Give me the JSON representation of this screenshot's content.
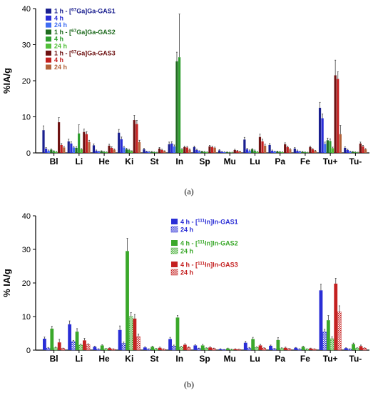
{
  "chart_data": [
    {
      "id": "a",
      "type": "bar",
      "caption": "(a)",
      "ylabel": "%IA/g",
      "ylim": [
        0,
        40
      ],
      "yticks": [
        0,
        10,
        20,
        30,
        40
      ],
      "categories": [
        "Bl",
        "Li",
        "He",
        "Ki",
        "St",
        "In",
        "Sp",
        "Mu",
        "Lu",
        "Pa",
        "Fe",
        "Tu+",
        "Tu-"
      ],
      "series": [
        {
          "name": "1 h - [67Ga]Ga-GAS1",
          "legend_prefix": "1 h - [",
          "legend_sup": "67",
          "legend_suffix": "Ga]Ga-GAS1",
          "color": "#1a1f8f",
          "values": [
            6.3,
            3.2,
            2.1,
            5.6,
            1.0,
            2.4,
            1.6,
            0.7,
            3.7,
            2.2,
            1.2,
            12.5,
            1.4
          ],
          "errors": [
            1.2,
            0.6,
            0.4,
            0.9,
            0.3,
            0.6,
            0.3,
            0.2,
            0.6,
            0.4,
            0.3,
            1.5,
            0.3
          ]
        },
        {
          "name": "4 h",
          "color": "#2a2ed6",
          "values": [
            1.2,
            2.6,
            0.6,
            3.8,
            0.4,
            2.6,
            0.8,
            0.3,
            1.0,
            0.6,
            0.6,
            9.6,
            0.8
          ],
          "errors": [
            0.3,
            0.5,
            0.2,
            0.6,
            0.1,
            0.5,
            0.2,
            0.1,
            0.3,
            0.2,
            0.2,
            1.2,
            0.2
          ]
        },
        {
          "name": "24 h",
          "color": "#3f6cf2",
          "values": [
            0.6,
            1.5,
            0.4,
            1.5,
            0.3,
            1.8,
            0.5,
            0.2,
            0.6,
            0.4,
            0.4,
            2.5,
            0.4
          ],
          "errors": [
            0.2,
            0.3,
            0.1,
            0.3,
            0.1,
            0.4,
            0.1,
            0.1,
            0.2,
            0.1,
            0.1,
            0.5,
            0.1
          ]
        },
        {
          "name": "1 h - [67Ga]Ga-GAS2",
          "legend_prefix": "1 h - [",
          "legend_sup": "67",
          "legend_suffix": "Ga]Ga-GAS2",
          "color": "#1f6b1f",
          "values": [
            0.9,
            1.4,
            0.5,
            1.0,
            0.3,
            25.4,
            0.4,
            0.2,
            1.0,
            0.4,
            0.3,
            3.5,
            0.3
          ],
          "errors": [
            0.2,
            0.3,
            0.1,
            0.3,
            0.1,
            2.5,
            0.1,
            0.1,
            0.2,
            0.1,
            0.1,
            0.6,
            0.1
          ]
        },
        {
          "name": "4 h",
          "color": "#2e9e2e",
          "values": [
            0.5,
            5.4,
            0.3,
            0.8,
            0.2,
            26.5,
            0.3,
            0.1,
            0.6,
            0.3,
            0.2,
            3.3,
            0.2
          ],
          "errors": [
            0.1,
            2.4,
            0.1,
            0.2,
            0.1,
            12.0,
            0.1,
            0.1,
            0.2,
            0.1,
            0.1,
            0.6,
            0.1
          ]
        },
        {
          "name": "24 h",
          "color": "#52c03a",
          "values": [
            0.3,
            1.0,
            0.2,
            0.5,
            0.1,
            1.0,
            0.2,
            0.1,
            0.3,
            0.2,
            0.1,
            1.3,
            0.1
          ],
          "errors": [
            0.1,
            0.2,
            0.1,
            0.1,
            0.1,
            0.2,
            0.1,
            0.1,
            0.1,
            0.1,
            0.1,
            0.3,
            0.1
          ]
        },
        {
          "name": "1 h - [67Ga]Ga-GAS3",
          "legend_prefix": "1 h - [",
          "legend_sup": "67",
          "legend_suffix": "Ga]Ga-GAS3",
          "color": "#6e1212",
          "values": [
            8.5,
            5.8,
            2.0,
            9.1,
            1.2,
            1.6,
            1.8,
            0.8,
            4.4,
            2.4,
            1.6,
            21.5,
            2.6
          ],
          "errors": [
            1.3,
            0.8,
            0.4,
            1.3,
            0.3,
            0.3,
            0.3,
            0.2,
            0.8,
            0.4,
            0.3,
            4.2,
            0.4
          ]
        },
        {
          "name": "4 h",
          "color": "#c42020",
          "values": [
            2.2,
            5.2,
            1.4,
            8.0,
            0.8,
            1.5,
            1.6,
            0.6,
            3.2,
            1.6,
            1.0,
            20.5,
            1.8
          ],
          "errors": [
            0.4,
            0.7,
            0.3,
            1.0,
            0.2,
            0.3,
            0.3,
            0.1,
            0.6,
            0.3,
            0.2,
            2.0,
            0.3
          ]
        },
        {
          "name": "24 h",
          "color": "#b3623a",
          "values": [
            1.5,
            3.0,
            0.9,
            3.0,
            0.5,
            0.9,
            1.4,
            0.4,
            2.0,
            1.0,
            0.6,
            5.2,
            1.0
          ],
          "errors": [
            0.3,
            0.5,
            0.2,
            0.5,
            0.1,
            0.2,
            0.2,
            0.1,
            0.4,
            0.2,
            0.1,
            2.4,
            0.2
          ]
        }
      ]
    },
    {
      "id": "b",
      "type": "bar",
      "caption": "(b)",
      "ylabel": "% IA/g",
      "ylim": [
        0,
        40
      ],
      "yticks": [
        0,
        10,
        20,
        30,
        40
      ],
      "categories": [
        "Bl",
        "Li",
        "He",
        "Ki",
        "St",
        "In",
        "Sp",
        "Mu",
        "Lu",
        "Pa",
        "Fe",
        "Tu+",
        "Tu-"
      ],
      "series": [
        {
          "name": "4 h - [111In]In-GAS1",
          "legend_prefix": "4 h - [",
          "legend_sup": "111",
          "legend_suffix": "In]In-GAS1",
          "color": "#2a2ed6",
          "pattern": false,
          "values": [
            3.4,
            7.7,
            1.0,
            6.0,
            0.8,
            3.3,
            1.4,
            0.3,
            2.2,
            1.3,
            0.7,
            17.8,
            0.6
          ],
          "errors": [
            0.5,
            1.0,
            0.2,
            1.2,
            0.2,
            0.5,
            0.2,
            0.1,
            0.4,
            0.2,
            0.1,
            1.8,
            0.1
          ]
        },
        {
          "name": "24 h",
          "color": "#2a2ed6",
          "pattern": true,
          "values": [
            0.6,
            2.5,
            0.3,
            2.0,
            0.3,
            1.2,
            0.5,
            0.1,
            0.6,
            0.4,
            0.3,
            5.4,
            0.3
          ],
          "errors": [
            0.2,
            0.4,
            0.1,
            0.4,
            0.1,
            0.3,
            0.1,
            0.1,
            0.2,
            0.1,
            0.1,
            0.8,
            0.1
          ]
        },
        {
          "name": "4 h - [111In]In-GAS2",
          "legend_prefix": "4 h - [",
          "legend_sup": "111",
          "legend_suffix": "In]In-GAS2",
          "color": "#3aa82a",
          "pattern": false,
          "values": [
            6.4,
            5.5,
            1.4,
            29.5,
            1.0,
            9.7,
            1.4,
            0.5,
            3.3,
            3.0,
            1.0,
            8.9,
            1.8
          ],
          "errors": [
            0.7,
            0.9,
            0.2,
            3.8,
            0.2,
            0.6,
            0.3,
            0.1,
            0.5,
            0.7,
            0.2,
            1.4,
            0.3
          ]
        },
        {
          "name": "24 h",
          "color": "#3aa82a",
          "pattern": true,
          "values": [
            0.7,
            1.5,
            0.4,
            10.0,
            0.4,
            0.9,
            0.6,
            0.2,
            0.8,
            0.6,
            0.3,
            3.4,
            0.6
          ],
          "errors": [
            0.2,
            0.3,
            0.1,
            1.2,
            0.1,
            0.2,
            0.1,
            0.1,
            0.2,
            0.1,
            0.1,
            0.6,
            0.1
          ]
        },
        {
          "name": "4 h - [111In]In-GAS3",
          "legend_prefix": "4 h - [",
          "legend_sup": "111",
          "legend_suffix": "In]In-GAS3",
          "color": "#c42020",
          "pattern": false,
          "values": [
            2.3,
            2.9,
            0.6,
            9.4,
            0.7,
            1.6,
            0.8,
            0.3,
            1.4,
            0.7,
            0.5,
            19.8,
            1.2
          ],
          "errors": [
            0.9,
            0.6,
            0.1,
            1.2,
            0.2,
            0.3,
            0.2,
            0.1,
            0.3,
            0.2,
            0.1,
            1.6,
            0.3
          ]
        },
        {
          "name": "24 h",
          "color": "#c42020",
          "pattern": true,
          "values": [
            0.5,
            1.6,
            0.3,
            4.0,
            0.3,
            0.8,
            0.5,
            0.2,
            0.6,
            0.4,
            0.3,
            11.4,
            0.6
          ],
          "errors": [
            0.1,
            0.3,
            0.1,
            0.8,
            0.1,
            0.2,
            0.1,
            0.1,
            0.1,
            0.1,
            0.1,
            1.8,
            0.1
          ]
        }
      ]
    }
  ]
}
